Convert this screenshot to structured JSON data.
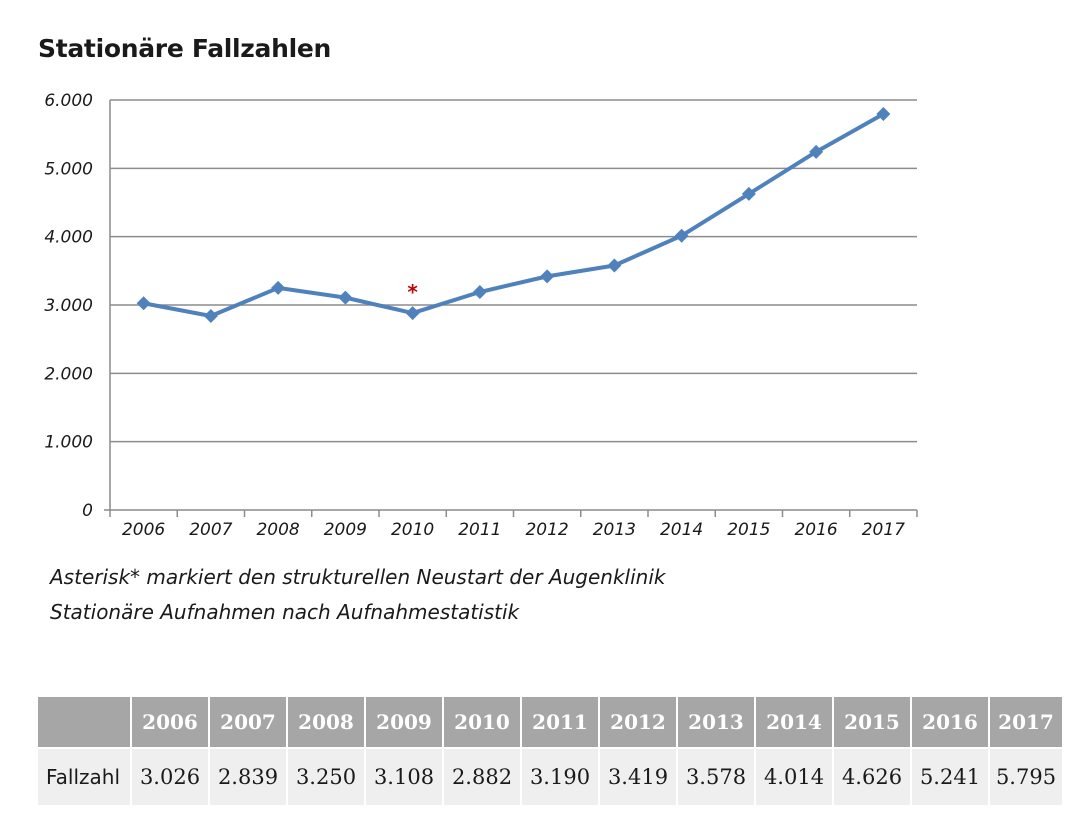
{
  "title": "Stationäre Fallzahlen",
  "chart_data": {
    "type": "line",
    "title": "Stationäre Fallzahlen",
    "xlabel": "",
    "ylabel": "",
    "categories": [
      "2006",
      "2007",
      "2008",
      "2009",
      "2010",
      "2011",
      "2012",
      "2013",
      "2014",
      "2015",
      "2016",
      "2017"
    ],
    "series": [
      {
        "values": [
          3026,
          2839,
          3250,
          3108,
          2882,
          3190,
          3419,
          3578,
          4014,
          4626,
          5241,
          5795
        ]
      }
    ],
    "ylim": [
      0,
      6000
    ],
    "yticks": [
      0,
      1000,
      2000,
      3000,
      4000,
      5000,
      6000
    ],
    "ytick_labels": [
      "0",
      "1.000",
      "2.000",
      "3.000",
      "4.000",
      "5.000",
      "6.000"
    ],
    "grid": "horizontal",
    "line_color": "#4f81bd",
    "annotation": {
      "text": "*",
      "category": "2010",
      "color": "#c00000"
    }
  },
  "notes": [
    "Asterisk* markiert den strukturellen Neustart der Augenklinik",
    "Stationäre Aufnahmen nach Aufnahmestatistik"
  ],
  "table": {
    "row_label": "Fallzahl",
    "header": [
      "2006",
      "2007",
      "2008",
      "2009",
      "2010",
      "2011",
      "2012",
      "2013",
      "2014",
      "2015",
      "2016",
      "2017"
    ],
    "values": [
      "3.026",
      "2.839",
      "3.250",
      "3.108",
      "2.882",
      "3.190",
      "3.419",
      "3.578",
      "4.014",
      "4.626",
      "5.241",
      "5.795"
    ]
  }
}
